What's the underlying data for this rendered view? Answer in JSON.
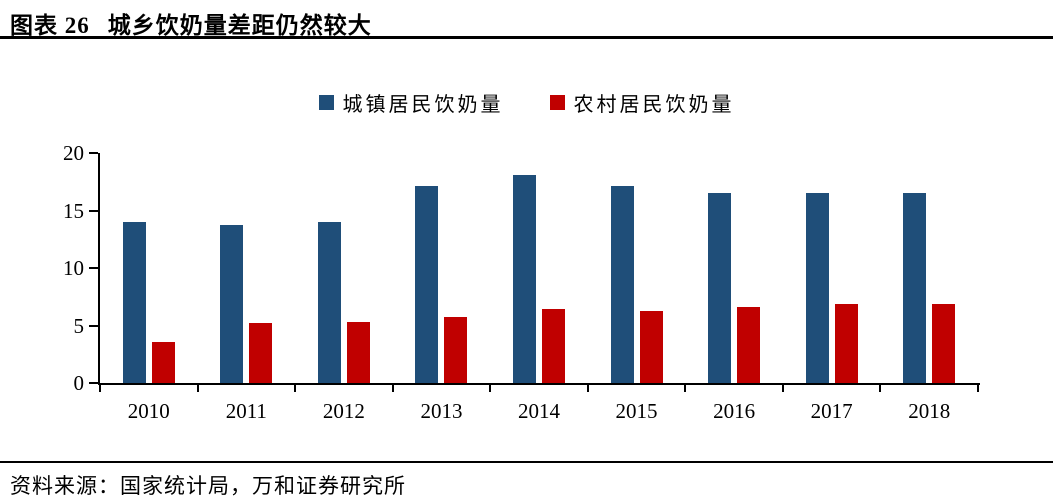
{
  "page": {
    "title_prefix": "图表 26",
    "title_text": "城乡饮奶量差距仍然较大",
    "source_text": "资料来源：国家统计局，万和证券研究所"
  },
  "colors": {
    "urban_blue": "#1F4E79",
    "rural_red": "#C00000",
    "axis": "#000000"
  },
  "chart_data": {
    "type": "bar",
    "title": "城乡饮奶量差距仍然较大",
    "categories": [
      "2010",
      "2011",
      "2012",
      "2013",
      "2014",
      "2015",
      "2016",
      "2017",
      "2018"
    ],
    "series": [
      {
        "name": "城镇居民饮奶量",
        "color": "#1F4E79",
        "values": [
          14.0,
          13.7,
          14.0,
          17.1,
          18.1,
          17.1,
          16.5,
          16.5,
          16.5
        ]
      },
      {
        "name": "农村居民饮奶量",
        "color": "#C00000",
        "values": [
          3.6,
          5.2,
          5.3,
          5.7,
          6.4,
          6.3,
          6.6,
          6.9,
          6.9
        ]
      }
    ],
    "xlabel": "",
    "ylabel": "",
    "ylim": [
      0,
      20
    ],
    "yticks": [
      0,
      5,
      10,
      15,
      20
    ],
    "legend_position": "top-center",
    "grid": false
  }
}
